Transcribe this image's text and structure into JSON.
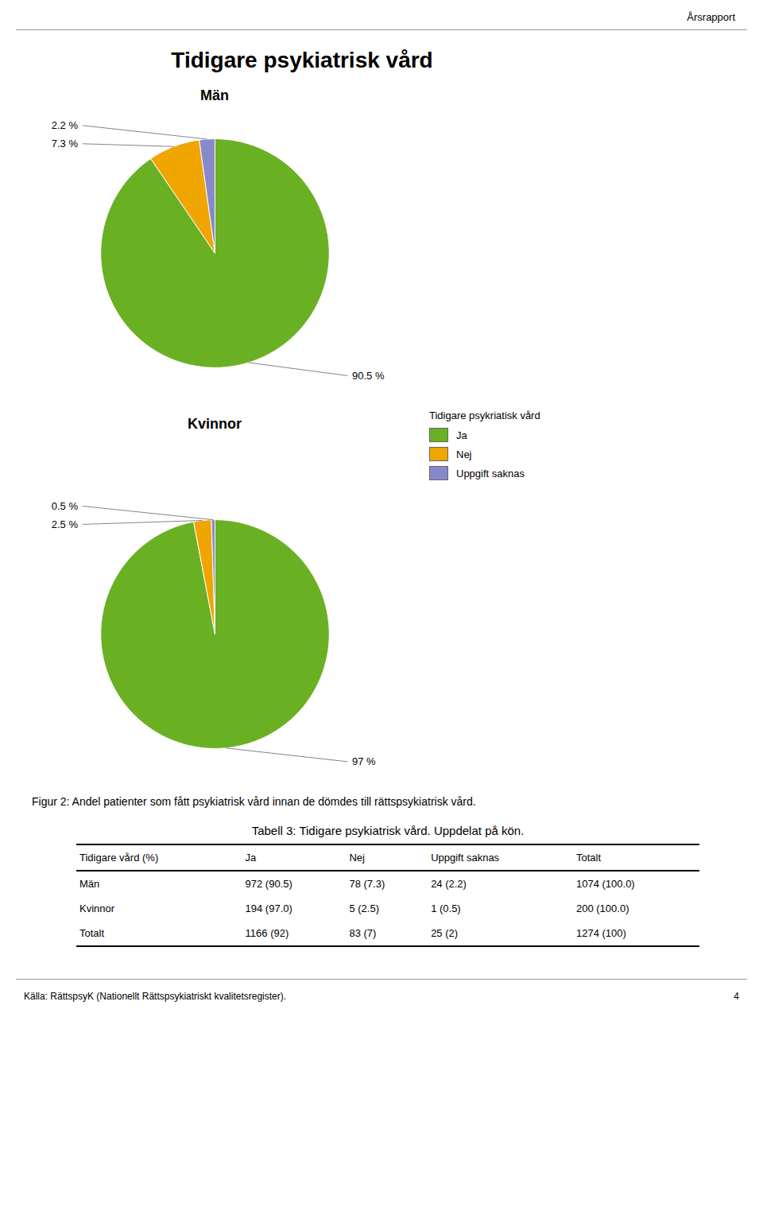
{
  "title": "Tidigare psykiatrisk vård",
  "header": "Årsrapport",
  "chart_data": [
    {
      "type": "pie",
      "title": "Män",
      "categories": [
        "Ja",
        "Nej",
        "Uppgift saknas"
      ],
      "values": [
        90.5,
        7.3,
        2.2
      ],
      "value_labels": [
        "90.5 %",
        "7.3 %",
        "2.2 %"
      ],
      "colors": [
        "#6ab023",
        "#f0a500",
        "#8888cc"
      ],
      "data_labels": true
    },
    {
      "type": "pie",
      "title": "Kvinnor",
      "categories": [
        "Ja",
        "Nej",
        "Uppgift saknas"
      ],
      "values": [
        97,
        2.5,
        0.5
      ],
      "value_labels": [
        "97 %",
        "2.5 %",
        "0.5 %"
      ],
      "colors": [
        "#6ab023",
        "#f0a500",
        "#8888cc"
      ],
      "data_labels": true,
      "legend": "right",
      "legend_title": "Tidigare psykriatisk vård"
    }
  ],
  "caption": "Figur 2: Andel patienter som fått psykiatrisk vård innan de dömdes till rättspsykiatrisk vård.",
  "table": {
    "title": "Tabell 3: Tidigare psykiatrisk vård. Uppdelat på kön.",
    "columns": [
      "Tidigare vård (%)",
      "Ja",
      "Nej",
      "Uppgift saknas",
      "Totalt"
    ],
    "rows": [
      [
        "Män",
        "972 (90.5)",
        "78 (7.3)",
        "24 (2.2)",
        "1074 (100.0)"
      ],
      [
        "Kvinnor",
        "194 (97.0)",
        "5 (2.5)",
        "1 (0.5)",
        "200 (100.0)"
      ],
      [
        "Totalt",
        "1166 (92)",
        "83 (7)",
        "25 (2)",
        "1274 (100)"
      ]
    ]
  },
  "footer_left": "Källa: RättspsyK (Nationellt Rättspsykiatriskt kvalitetsregister).",
  "footer_right": "4"
}
